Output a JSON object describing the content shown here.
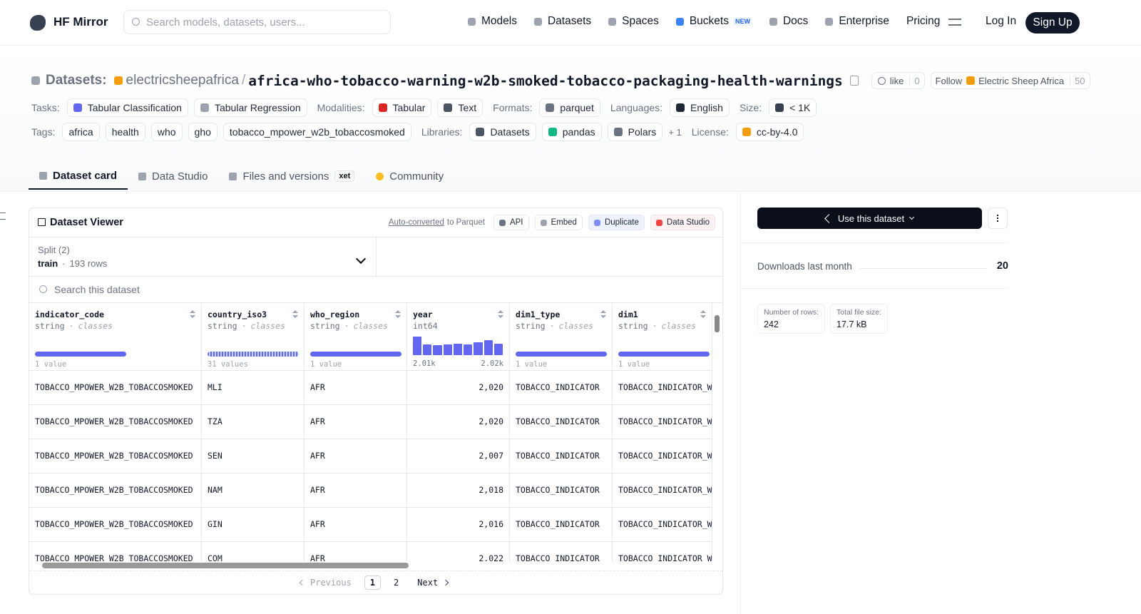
{
  "nav": {
    "brand": "HF Mirror",
    "search_placeholder": "Search models, datasets, users...",
    "links": [
      {
        "label": "Models"
      },
      {
        "label": "Datasets"
      },
      {
        "label": "Spaces"
      },
      {
        "label": "Buckets",
        "badge": "NEW"
      },
      {
        "label": "Docs"
      },
      {
        "label": "Enterprise"
      },
      {
        "label": "Pricing"
      }
    ],
    "login": "Log In",
    "signup": "Sign Up"
  },
  "header": {
    "prefix": "Datasets:",
    "owner": "electricsheepafrica",
    "separator": "/",
    "name": "africa-who-tobacco-warning-w2b-smoked-tobacco-packaging-health-warnings",
    "like": "like",
    "like_count": 0,
    "follow": "Follow",
    "follow_name": "Electric Sheep Africa",
    "follow_count": 50
  },
  "meta": [
    [
      {
        "label": "Tasks:",
        "items": [
          "Tabular Classification",
          "Tabular Regression"
        ]
      },
      {
        "label": "Modalities:",
        "items": [
          "Tabular",
          "Text"
        ]
      },
      {
        "label": "Formats:",
        "items": [
          "parquet"
        ]
      },
      {
        "label": "Languages:",
        "items": [
          "English"
        ]
      },
      {
        "label": "Size:",
        "items": [
          "< 1K"
        ]
      }
    ],
    [
      {
        "label": "Tags:",
        "items": [
          "africa",
          "health",
          "who",
          "gho",
          "tobacco_mpower_w2b_tobaccosmoked"
        ]
      },
      {
        "label": "Libraries:",
        "items": [
          "Datasets",
          "pandas",
          "Polars"
        ],
        "more": "+ 1"
      },
      {
        "label": "License:",
        "items": [
          "cc-by-4.0"
        ]
      }
    ]
  ],
  "tabs": [
    {
      "label": "Dataset card"
    },
    {
      "label": "Data Studio"
    },
    {
      "label": "Files and versions",
      "badge": "xet"
    },
    {
      "label": "Community"
    }
  ],
  "viewer": {
    "title": "Dataset Viewer",
    "auto_link": "Auto-converted",
    "auto_rest": "to Parquet",
    "actions": [
      "API",
      "Embed",
      "Duplicate",
      "Data Studio"
    ],
    "split_label": "Split (2)",
    "split": "train",
    "dot": "·",
    "split_rows": "193 rows",
    "search": "Search this dataset",
    "columns": [
      {
        "name": "indicator_code",
        "type": "string",
        "kind": "classes",
        "stat": "1 value"
      },
      {
        "name": "country_iso3",
        "type": "string",
        "kind": "classes",
        "stat": "31 values"
      },
      {
        "name": "who_region",
        "type": "string",
        "kind": "classes",
        "stat": "1 value"
      },
      {
        "name": "year",
        "type": "int64",
        "histogram": [
          25,
          14,
          13,
          14,
          15,
          14,
          17,
          20,
          15
        ],
        "min": "2.01k",
        "max": "2.02k"
      },
      {
        "name": "dim1_type",
        "type": "string",
        "kind": "classes",
        "stat": "1 value"
      },
      {
        "name": "dim1",
        "type": "string",
        "kind": "classes",
        "stat": "1 value"
      }
    ],
    "rows": [
      [
        "TOBACCO_MPOWER_W2B_TOBACCOSMOKED",
        "MLI",
        "AFR",
        "2,020",
        "TOBACCO_INDICATOR",
        "TOBACCO_INDICATOR_W"
      ],
      [
        "TOBACCO_MPOWER_W2B_TOBACCOSMOKED",
        "TZA",
        "AFR",
        "2,020",
        "TOBACCO_INDICATOR",
        "TOBACCO_INDICATOR_W"
      ],
      [
        "TOBACCO_MPOWER_W2B_TOBACCOSMOKED",
        "SEN",
        "AFR",
        "2,007",
        "TOBACCO_INDICATOR",
        "TOBACCO_INDICATOR_W"
      ],
      [
        "TOBACCO_MPOWER_W2B_TOBACCOSMOKED",
        "NAM",
        "AFR",
        "2,018",
        "TOBACCO_INDICATOR",
        "TOBACCO_INDICATOR_W"
      ],
      [
        "TOBACCO_MPOWER_W2B_TOBACCOSMOKED",
        "GIN",
        "AFR",
        "2,016",
        "TOBACCO_INDICATOR",
        "TOBACCO_INDICATOR_W"
      ],
      [
        "TOBACCO_MPOWER_W2B_TOBACCOSMOKED",
        "COM",
        "AFR",
        "2,022",
        "TOBACCO_INDICATOR",
        "TOBACCO_INDICATOR_W"
      ]
    ],
    "pagination": {
      "previous": "Previous",
      "pages": [
        1,
        2
      ],
      "next": "Next"
    }
  },
  "sidebar": {
    "use": "Use this dataset",
    "downloads_label": "Downloads last month",
    "downloads": 20,
    "stats": [
      {
        "label": "Number of rows:",
        "value": 242
      },
      {
        "label": "Total file size:",
        "value": "17.7 kB"
      }
    ]
  }
}
